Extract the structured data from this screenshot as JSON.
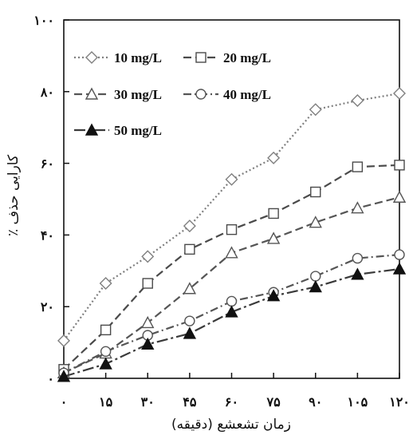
{
  "chart_data": {
    "type": "line",
    "title": "",
    "xlabel": "زمان تشعشع (دقیقه)",
    "ylabel": "کارایی حذف ٪",
    "x": [
      0,
      15,
      30,
      45,
      60,
      75,
      90,
      105,
      120
    ],
    "x_tick_labels": [
      "۰",
      "۱۵",
      "۳۰",
      "۴۵",
      "۶۰",
      "۷۵",
      "۹۰",
      "۱۰۵",
      "۱۲۰"
    ],
    "xlim": [
      0,
      120
    ],
    "ylim": [
      0,
      100
    ],
    "y_ticks": [
      0,
      20,
      40,
      60,
      80,
      100
    ],
    "y_tick_labels": [
      "۰",
      "۲۰",
      "۴۰",
      "۶۰",
      "۸۰",
      "۱۰۰"
    ],
    "grid": false,
    "legend_position": "top-left",
    "series": [
      {
        "name": "10 mg/L",
        "marker": "diamond",
        "filled": false,
        "dash": "dotted",
        "color": "#7f7f7f",
        "values": [
          10.5,
          26.5,
          34,
          42.5,
          55.5,
          61.5,
          75,
          77.5,
          79.5
        ]
      },
      {
        "name": "20 mg/L",
        "marker": "square",
        "filled": false,
        "dash": "dashed",
        "color": "#4a4a4a",
        "values": [
          2.5,
          13.5,
          26.5,
          36,
          41.5,
          46,
          52,
          59,
          59.5
        ]
      },
      {
        "name": "30 mg/L",
        "marker": "triangle",
        "filled": false,
        "dash": "dashed",
        "color": "#555555",
        "values": [
          1.5,
          7,
          15.5,
          25,
          35,
          39,
          43.5,
          47.5,
          50.5
        ]
      },
      {
        "name": "40 mg/L",
        "marker": "circle",
        "filled": false,
        "dash": "dashdot",
        "color": "#555555",
        "values": [
          1.5,
          7.5,
          12,
          16,
          21.5,
          24,
          28.5,
          33.5,
          34.5
        ]
      },
      {
        "name": "50 mg/L",
        "marker": "triangle",
        "filled": true,
        "dash": "longdashdot",
        "color": "#3a3a3a",
        "values": [
          0.5,
          4,
          9.5,
          12.5,
          18.5,
          23,
          25.5,
          29,
          30.5
        ]
      }
    ]
  }
}
